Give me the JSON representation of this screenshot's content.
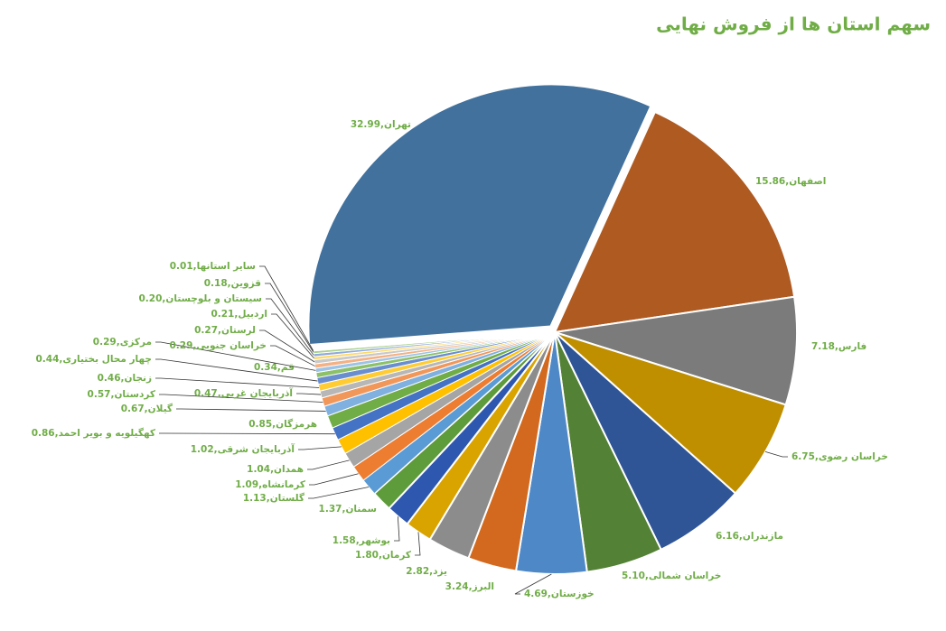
{
  "chart_data": {
    "type": "pie",
    "title": "سهم استان ها از فروش نهایی",
    "values": [
      32.99,
      15.86,
      7.18,
      6.75,
      6.16,
      5.1,
      4.69,
      3.24,
      2.82,
      1.8,
      1.58,
      1.37,
      1.13,
      1.09,
      1.04,
      1.02,
      0.86,
      0.85,
      0.67,
      0.57,
      0.47,
      0.46,
      0.44,
      0.34,
      0.29,
      0.29,
      0.27,
      0.21,
      0.2,
      0.18,
      0.01
    ],
    "value_labels": [
      "تهران,32.99",
      "اصفهان,15.86",
      "فارس,7.18",
      "خراسان رضوی,6.75",
      "مازندران,6.16",
      "خراسان شمالی,5.10",
      "خوزستان,4.69",
      "البرز,3.24",
      "یزد,2.82",
      "کرمان,1.80",
      "بوشهر,1.58",
      "سمنان,1.37",
      "گلستان,1.13",
      "کرمانشاه,1.09",
      "همدان,1.04",
      "آذربایجان شرقی,1.02",
      "کهگیلویه و بویر احمد,0.86",
      "هرمزگان,0.85",
      "گیلان,0.67",
      "کردستان,0.57",
      "آذربایجان غربی,0.47",
      "زنجان,0.46",
      "چهار محال بختیاری,0.44",
      "قم,0.34",
      "مرکزی,0.29",
      "خراسان جنوبی,0.29",
      "لرستان,0.27",
      "اردبیل,0.21",
      "سیستان و بلوچستان,0.20",
      "قزوین,0.18",
      "سایر استانها,0.01"
    ],
    "colors": [
      "#41719c",
      "#ae5a21",
      "#7b7b7b",
      "#bf8f00",
      "#2f5597",
      "#538135",
      "#4f88c6",
      "#d2691e",
      "#8c8c8c",
      "#d9a300",
      "#2e58b0",
      "#5e9b3a",
      "#5b9bd5",
      "#ed7d31",
      "#a5a5a5",
      "#ffc000",
      "#4472c4",
      "#70ad47",
      "#7fb0e0",
      "#f1975a",
      "#b7b7b7",
      "#ffcd33",
      "#698ed0",
      "#8cc168",
      "#9dc3e6",
      "#f4b183",
      "#c9c9c9",
      "#ffd966",
      "#8faadc",
      "#a9d18e",
      "#bdd7ee"
    ],
    "label_color": "#70ad47"
  }
}
